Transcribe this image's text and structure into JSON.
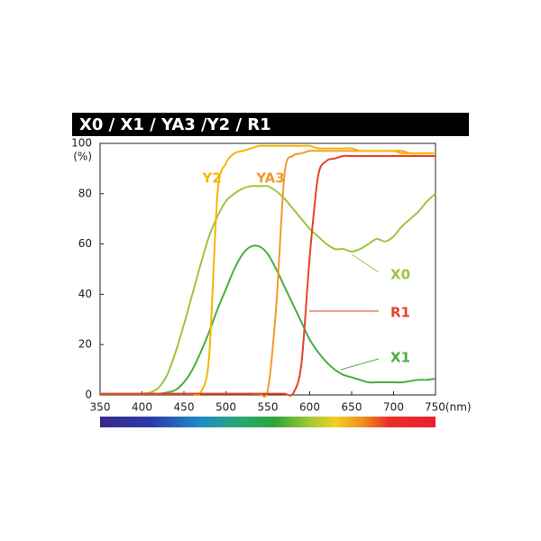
{
  "chart_data": {
    "type": "line",
    "title": "X0 / X1 / YA3 /Y2 / R1",
    "ylabel": "(%)",
    "x": [
      350,
      360,
      370,
      380,
      390,
      400,
      410,
      420,
      430,
      440,
      450,
      460,
      470,
      480,
      490,
      500,
      510,
      520,
      530,
      540,
      550,
      560,
      570,
      580,
      590,
      600,
      610,
      620,
      630,
      640,
      650,
      660,
      670,
      680,
      690,
      700,
      710,
      720,
      730,
      740,
      750
    ],
    "series": [
      {
        "name": "X0",
        "color": "#9bc53d",
        "values": [
          0.5,
          0.5,
          0.5,
          0.5,
          0.5,
          0.5,
          1,
          3,
          8,
          17,
          28,
          40,
          52,
          63,
          71,
          77,
          80,
          82,
          83,
          83,
          83,
          81,
          78,
          74,
          70,
          66,
          63,
          60,
          58,
          58,
          57,
          58,
          60,
          62,
          61,
          63,
          67,
          70,
          73,
          77,
          80
        ]
      },
      {
        "name": "X1",
        "color": "#4aae3f",
        "values": [
          0.5,
          0.5,
          0.5,
          0.5,
          0.5,
          0.5,
          0.5,
          0.5,
          1,
          2,
          5,
          10,
          17,
          25,
          34,
          42,
          50,
          56,
          59,
          59,
          56,
          50,
          43,
          36,
          29,
          22,
          17,
          13,
          10,
          8,
          7,
          6,
          5,
          5,
          5,
          5,
          5,
          5.5,
          6,
          6,
          6.5
        ]
      },
      {
        "name": "YA3",
        "color": "#f39a2a",
        "values": [
          0.5,
          0.5,
          0.5,
          0.5,
          0.5,
          0.5,
          0.5,
          0.5,
          0.5,
          0.5,
          0.5,
          0.5,
          0.5,
          0.5,
          0.5,
          0.5,
          0.5,
          0.5,
          0.5,
          0.5,
          2,
          35,
          88,
          95,
          96,
          97,
          97,
          97,
          97,
          97,
          97,
          97,
          97,
          97,
          97,
          97,
          97,
          96,
          96,
          96,
          96
        ]
      },
      {
        "name": "Y2",
        "color": "#f2b800",
        "values": [
          0.5,
          0.5,
          0.5,
          0.5,
          0.5,
          0.5,
          0.5,
          0.5,
          0.5,
          0.5,
          0.5,
          0.5,
          1,
          15,
          80,
          92,
          96,
          97,
          98,
          99,
          99,
          99,
          99,
          99,
          99,
          99,
          98,
          98,
          98,
          98,
          98,
          97,
          97,
          97,
          97,
          97,
          96,
          96,
          96,
          96,
          96
        ]
      },
      {
        "name": "R1",
        "color": "#e8412c",
        "values": [
          0.5,
          0.5,
          0.5,
          0.5,
          0.5,
          0.5,
          0.5,
          0.5,
          0.5,
          0.5,
          0.5,
          0.5,
          0.5,
          0.5,
          0.5,
          0.5,
          0.5,
          0.5,
          0.5,
          0.5,
          0.5,
          0.5,
          0.5,
          0.5,
          12,
          55,
          87,
          93,
          94,
          95,
          95,
          95,
          95,
          95,
          95,
          95,
          95,
          95,
          95,
          95,
          95
        ]
      }
    ],
    "xlim": [
      350,
      750
    ],
    "ylim": [
      0,
      100
    ],
    "xticks": [
      350,
      400,
      450,
      500,
      550,
      600,
      650,
      700,
      {
        "value": 750,
        "label": "750(nm)"
      }
    ],
    "yticks": [
      0,
      20,
      40,
      60,
      80,
      100
    ]
  }
}
